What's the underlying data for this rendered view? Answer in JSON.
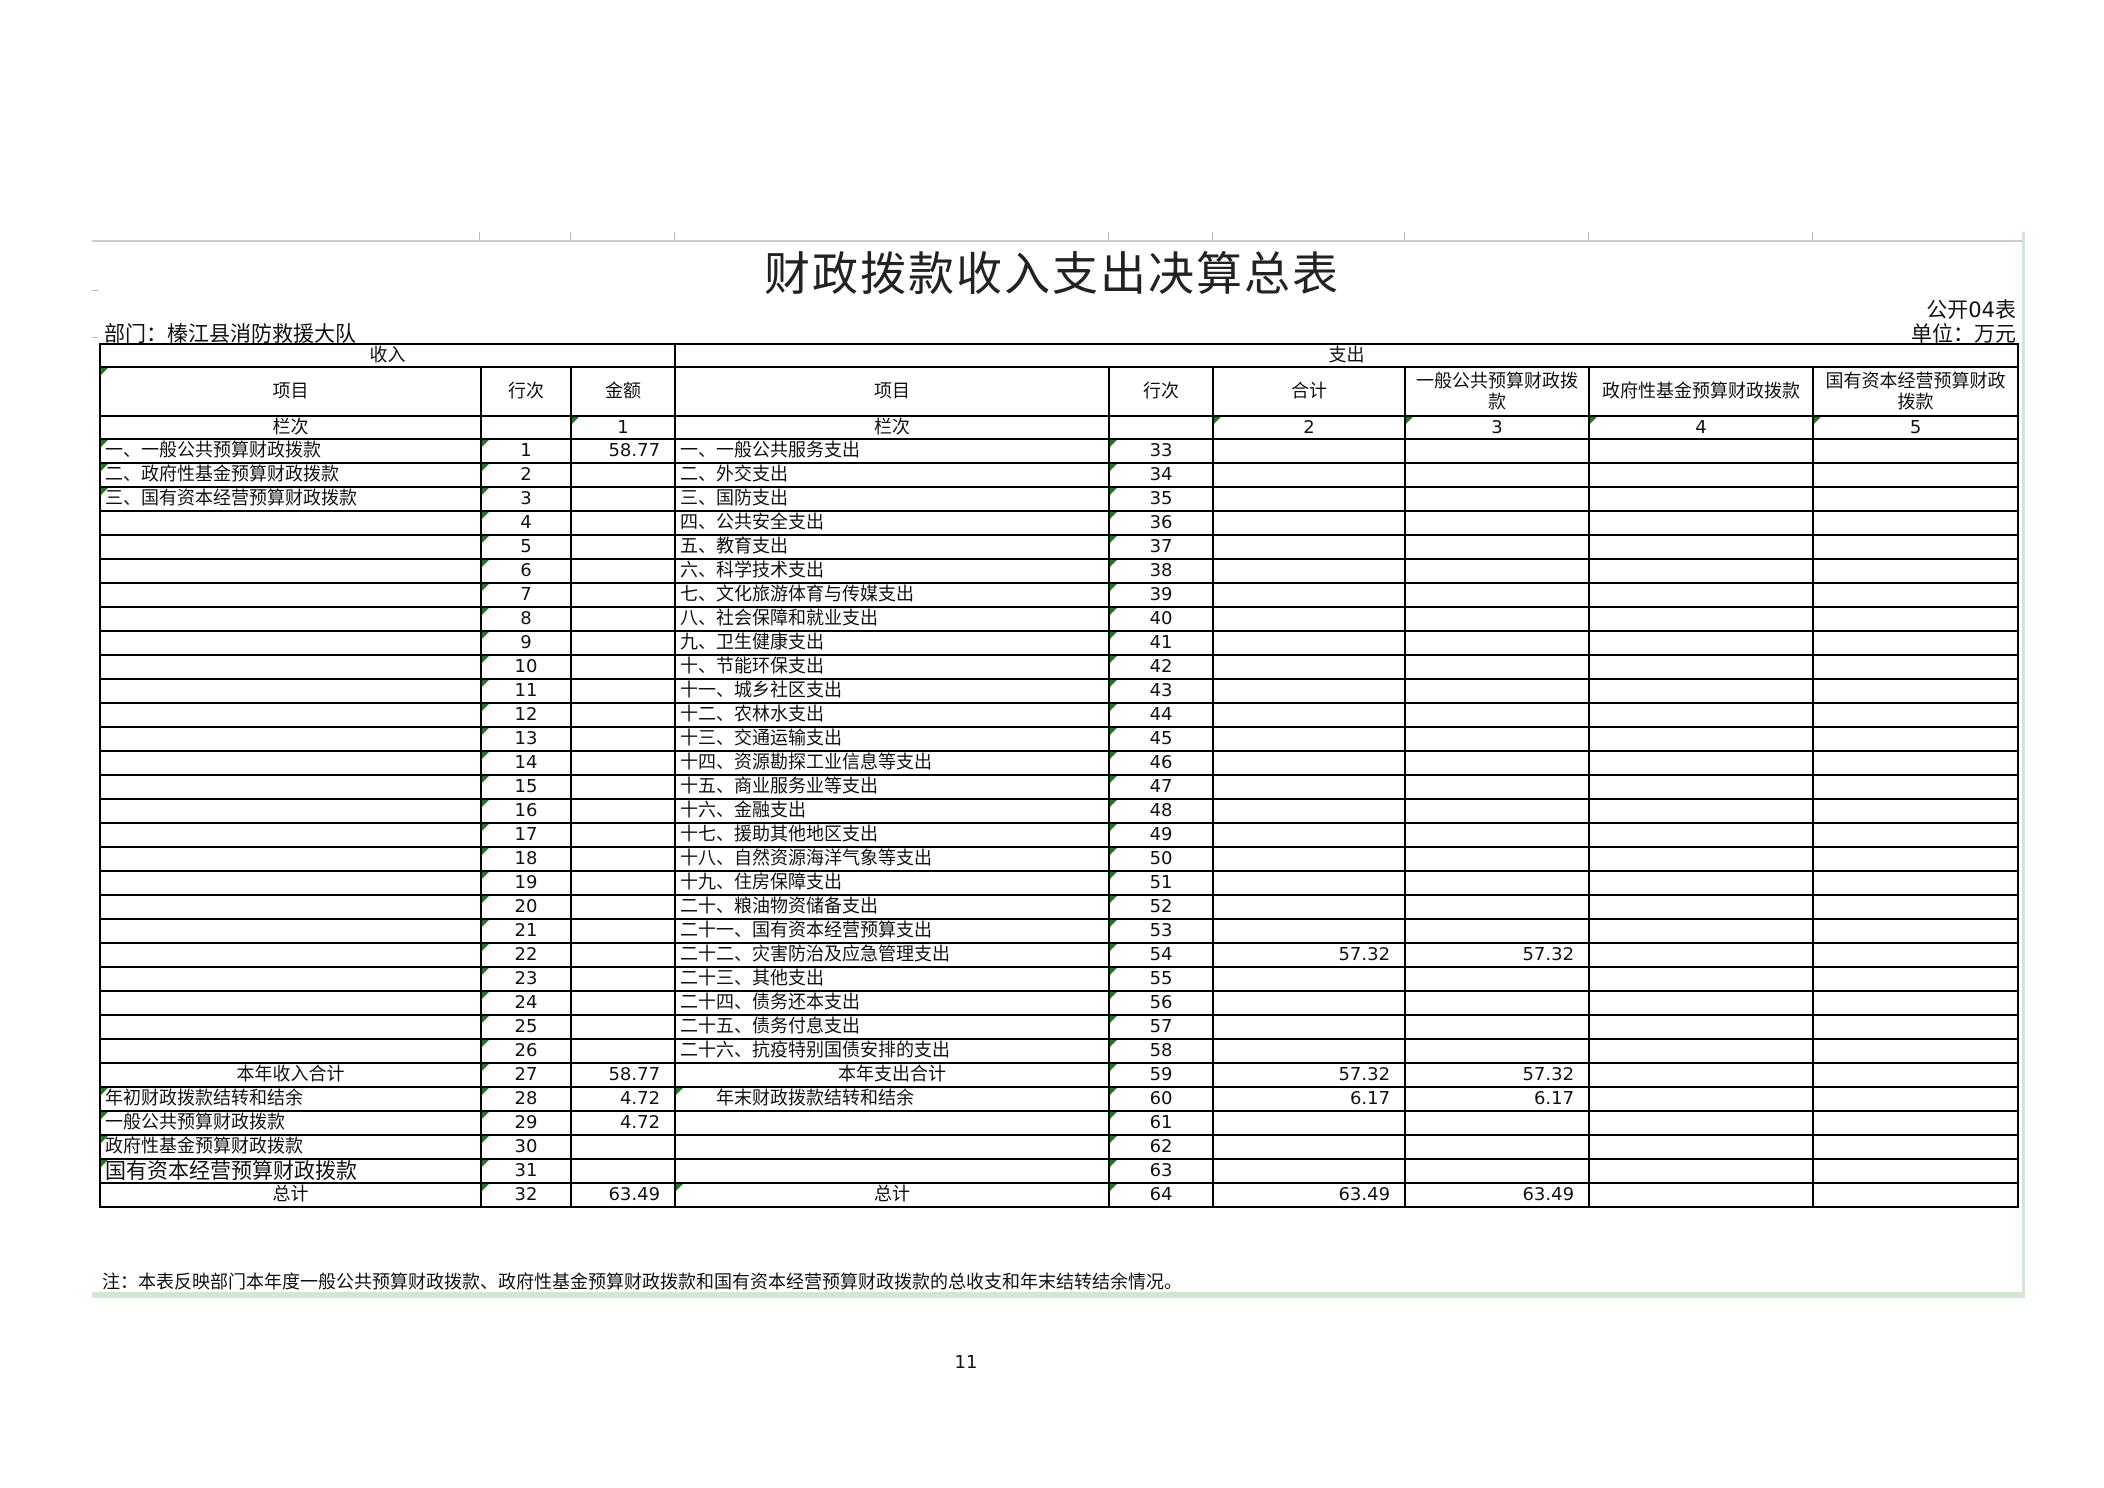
{
  "title": "财政拨款收入支出决算总表",
  "form_code": "公开04表",
  "department": "部门：榛江县消防救援大队",
  "unit": "单位：万元",
  "sections": {
    "income": "收入",
    "expense": "支出"
  },
  "headers": {
    "income_item": "项目",
    "income_line": "行次",
    "income_amount": "金额",
    "exp_item": "项目",
    "exp_line": "行次",
    "total": "合计",
    "general": "一般公共预算财政拨款",
    "gov_fund": "政府性基金预算财政拨款",
    "soe": "国有资本经营预算财政拨款"
  },
  "column_index": {
    "income_item": "栏次",
    "income_amount": "1",
    "exp_item": "栏次",
    "total": "2",
    "general": "3",
    "gov_fund": "4",
    "soe": "5"
  },
  "rows": [
    [
      "一、一般公共预算财政拨款",
      "1",
      "58.77",
      "一、一般公共服务支出",
      "33",
      "",
      "",
      "",
      ""
    ],
    [
      "二、政府性基金预算财政拨款",
      "2",
      "",
      "二、外交支出",
      "34",
      "",
      "",
      "",
      ""
    ],
    [
      "三、国有资本经营预算财政拨款",
      "3",
      "",
      "三、国防支出",
      "35",
      "",
      "",
      "",
      ""
    ],
    [
      "",
      "4",
      "",
      "四、公共安全支出",
      "36",
      "",
      "",
      "",
      ""
    ],
    [
      "",
      "5",
      "",
      "五、教育支出",
      "37",
      "",
      "",
      "",
      ""
    ],
    [
      "",
      "6",
      "",
      "六、科学技术支出",
      "38",
      "",
      "",
      "",
      ""
    ],
    [
      "",
      "7",
      "",
      "七、文化旅游体育与传媒支出",
      "39",
      "",
      "",
      "",
      ""
    ],
    [
      "",
      "8",
      "",
      "八、社会保障和就业支出",
      "40",
      "",
      "",
      "",
      ""
    ],
    [
      "",
      "9",
      "",
      "九、卫生健康支出",
      "41",
      "",
      "",
      "",
      ""
    ],
    [
      "",
      "10",
      "",
      "十、节能环保支出",
      "42",
      "",
      "",
      "",
      ""
    ],
    [
      "",
      "11",
      "",
      "十一、城乡社区支出",
      "43",
      "",
      "",
      "",
      ""
    ],
    [
      "",
      "12",
      "",
      "十二、农林水支出",
      "44",
      "",
      "",
      "",
      ""
    ],
    [
      "",
      "13",
      "",
      "十三、交通运输支出",
      "45",
      "",
      "",
      "",
      ""
    ],
    [
      "",
      "14",
      "",
      "十四、资源勘探工业信息等支出",
      "46",
      "",
      "",
      "",
      ""
    ],
    [
      "",
      "15",
      "",
      "十五、商业服务业等支出",
      "47",
      "",
      "",
      "",
      ""
    ],
    [
      "",
      "16",
      "",
      "十六、金融支出",
      "48",
      "",
      "",
      "",
      ""
    ],
    [
      "",
      "17",
      "",
      "十七、援助其他地区支出",
      "49",
      "",
      "",
      "",
      ""
    ],
    [
      "",
      "18",
      "",
      "十八、自然资源海洋气象等支出",
      "50",
      "",
      "",
      "",
      ""
    ],
    [
      "",
      "19",
      "",
      "十九、住房保障支出",
      "51",
      "",
      "",
      "",
      ""
    ],
    [
      "",
      "20",
      "",
      "二十、粮油物资储备支出",
      "52",
      "",
      "",
      "",
      ""
    ],
    [
      "",
      "21",
      "",
      "二十一、国有资本经营预算支出",
      "53",
      "",
      "",
      "",
      ""
    ],
    [
      "",
      "22",
      "",
      "二十二、灾害防治及应急管理支出",
      "54",
      "57.32",
      "57.32",
      "",
      ""
    ],
    [
      "",
      "23",
      "",
      "二十三、其他支出",
      "55",
      "",
      "",
      "",
      ""
    ],
    [
      "",
      "24",
      "",
      "二十四、债务还本支出",
      "56",
      "",
      "",
      "",
      ""
    ],
    [
      "",
      "25",
      "",
      "二十五、债务付息支出",
      "57",
      "",
      "",
      "",
      ""
    ],
    [
      "",
      "26",
      "",
      "二十六、抗疫特别国债安排的支出",
      "58",
      "",
      "",
      "",
      ""
    ],
    [
      "本年收入合计",
      "27",
      "58.77",
      "本年支出合计",
      "59",
      "57.32",
      "57.32",
      "",
      ""
    ],
    [
      "年初财政拨款结转和结余",
      "28",
      "4.72",
      "年末财政拨款结转和结余",
      "60",
      "6.17",
      "6.17",
      "",
      ""
    ],
    [
      "一般公共预算财政拨款",
      "29",
      "4.72",
      "",
      "61",
      "",
      "",
      "",
      ""
    ],
    [
      "政府性基金预算财政拨款",
      "30",
      "",
      "",
      "62",
      "",
      "",
      "",
      ""
    ],
    [
      "国有资本经营预算财政拨款",
      "31",
      "",
      "",
      "63",
      "",
      "",
      "",
      ""
    ],
    [
      "总计",
      "32",
      "63.49",
      "总计",
      "64",
      "63.49",
      "63.49",
      "",
      ""
    ]
  ],
  "note": "注：本表反映部门本年度一般公共预算财政拨款、政府性基金预算财政拨款和国有资本经营预算财政拨款的总收支和年末结转结余情况。",
  "page_number": "11",
  "colors": {
    "border": "#000000",
    "comment_marker": "#1e7a1e",
    "sheet_edge": "#cfe8cf"
  }
}
